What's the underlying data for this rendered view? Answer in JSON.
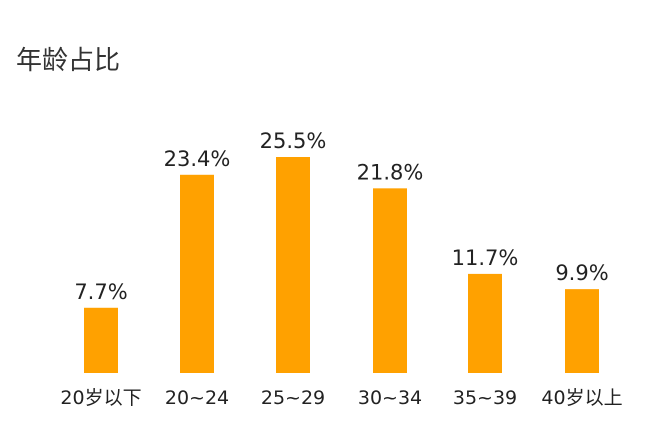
{
  "chart_data": {
    "type": "bar",
    "title": "年龄占比",
    "categories": [
      "20岁以下",
      "20~24",
      "25~29",
      "30~34",
      "35~39",
      "40岁以上"
    ],
    "values": [
      7.7,
      23.4,
      25.5,
      21.8,
      11.7,
      9.9
    ],
    "value_labels": [
      "7.7%",
      "23.4%",
      "25.5%",
      "21.8%",
      "11.7%",
      "9.9%"
    ],
    "bar_color": "#FFA100",
    "xlabel": "",
    "ylabel": "",
    "ylim": [
      0,
      25.5
    ],
    "grid": false,
    "legend": "none"
  }
}
